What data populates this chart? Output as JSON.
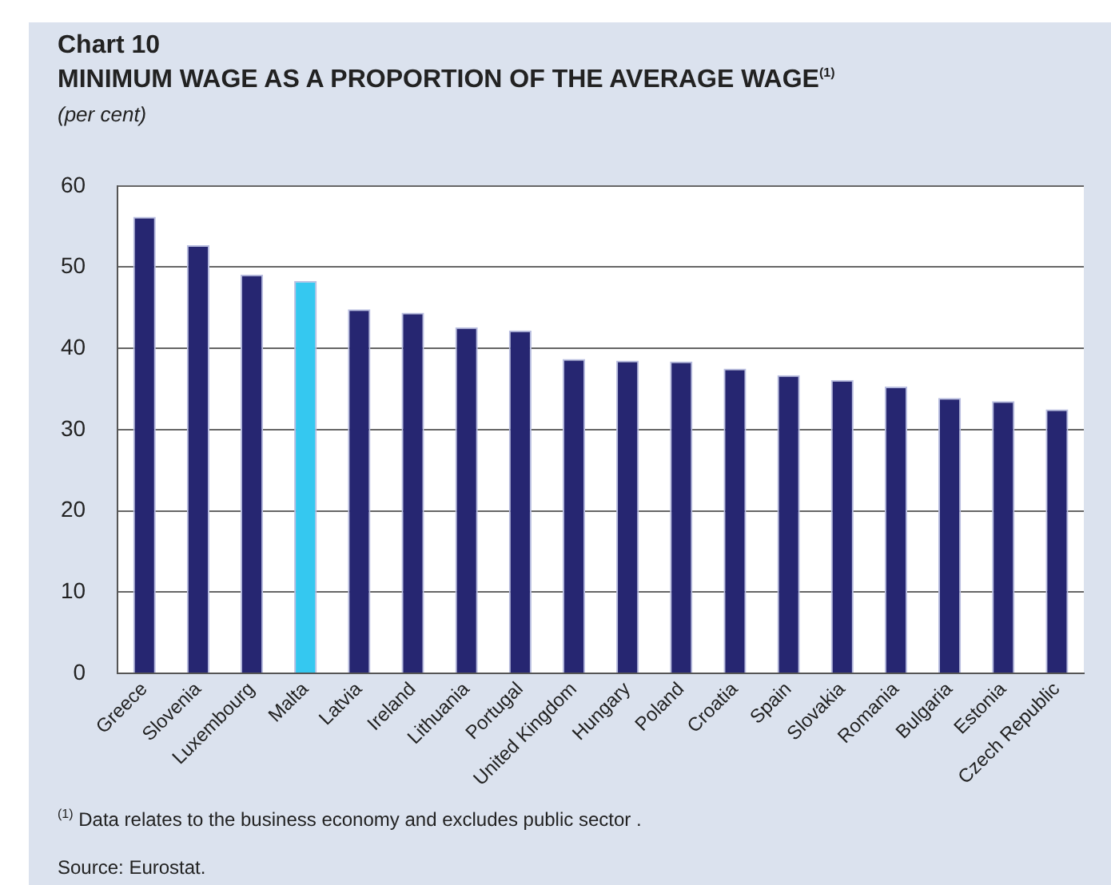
{
  "chart_data": {
    "type": "bar",
    "title": "Chart 10",
    "subtitle": "MINIMUM WAGE AS A PROPORTION OF THE AVERAGE WAGE$^{(1)}$",
    "ylabel": "(per cent)",
    "categories": [
      "Greece",
      "Slovenia",
      "Luxembourg",
      "Malta",
      "Latvia",
      "Ireland",
      "Lithuania",
      "Portugal",
      "United Kingdom",
      "Hungary",
      "Poland",
      "Croatia",
      "Spain",
      "Slovakia",
      "Romania",
      "Bulgaria",
      "Estonia",
      "Czech Republic"
    ],
    "values": [
      56.2,
      52.7,
      49.1,
      48.3,
      44.8,
      44.4,
      42.6,
      42.2,
      38.7,
      38.5,
      38.4,
      37.5,
      36.7,
      36.1,
      35.3,
      33.9,
      33.5,
      32.5
    ],
    "colors": [
      "#262671",
      "#262671",
      "#262671",
      "#35c8f0",
      "#262671",
      "#262671",
      "#262671",
      "#262671",
      "#262671",
      "#262671",
      "#262671",
      "#262671",
      "#262671",
      "#262671",
      "#262671",
      "#262671",
      "#262671",
      "#262671"
    ],
    "ylim": [
      0,
      60
    ],
    "yticks": [
      0,
      10,
      20,
      30,
      40,
      50,
      60
    ],
    "grid": "y",
    "legend": false,
    "annotations": [
      "$^{(1)}$ Data relates to the business economy and excludes public sector .",
      "Source: Eurostat."
    ]
  }
}
